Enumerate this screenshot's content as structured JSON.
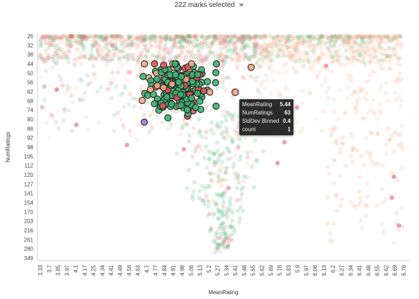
{
  "header": {
    "selection_label": "222 marks selected"
  },
  "tooltip": {
    "rows": [
      {
        "label": "MeanRating",
        "value": "5.44"
      },
      {
        "label": "NumRatings",
        "value": "63"
      },
      {
        "label": "StdDev Binned",
        "value": "0.4"
      },
      {
        "label": "count",
        "value": "1"
      }
    ]
  },
  "colors": {
    "green": "#3cb371",
    "red": "#e0525a",
    "orange": "#f5a882",
    "purple": "#9b7bd6",
    "axis": "#bbbbbb"
  },
  "chart_data": {
    "type": "scatter",
    "title": "",
    "xlabel": "MeanRating",
    "ylabel": "NumRatings",
    "x_ticks": [
      "3.33",
      "3.7",
      "3.85",
      "3.97",
      "4.1",
      "4.17",
      "4.25",
      "4.34",
      "4.41",
      "4.49",
      "4.56",
      "4.63",
      "4.7",
      "4.77",
      "4.84",
      "4.91",
      "4.98",
      "5.06",
      "5.13",
      "5.2",
      "5.27",
      "5.34",
      "5.41",
      "5.48",
      "5.55",
      "5.62",
      "5.69",
      "5.76",
      "5.83",
      "5.9",
      "5.97",
      "6.06",
      "6.13",
      "6.2",
      "6.27",
      "6.34",
      "6.41",
      "6.48",
      "6.55",
      "6.62",
      "6.69",
      "6.76"
    ],
    "y_ticks": [
      "26",
      "32",
      "38",
      "44",
      "50",
      "56",
      "62",
      "68",
      "74",
      "80",
      "86",
      "92",
      "98",
      "105",
      "112",
      "120",
      "127",
      "141",
      "154",
      "170",
      "203",
      "216",
      "261",
      "280",
      "349"
    ],
    "x_scale": "ordinal",
    "y_scale": "ordinal",
    "selected_count": 222,
    "highlighted_point": {
      "MeanRating": 5.44,
      "NumRatings": 63,
      "StdDev Binned": 0.4,
      "count": 1
    }
  }
}
